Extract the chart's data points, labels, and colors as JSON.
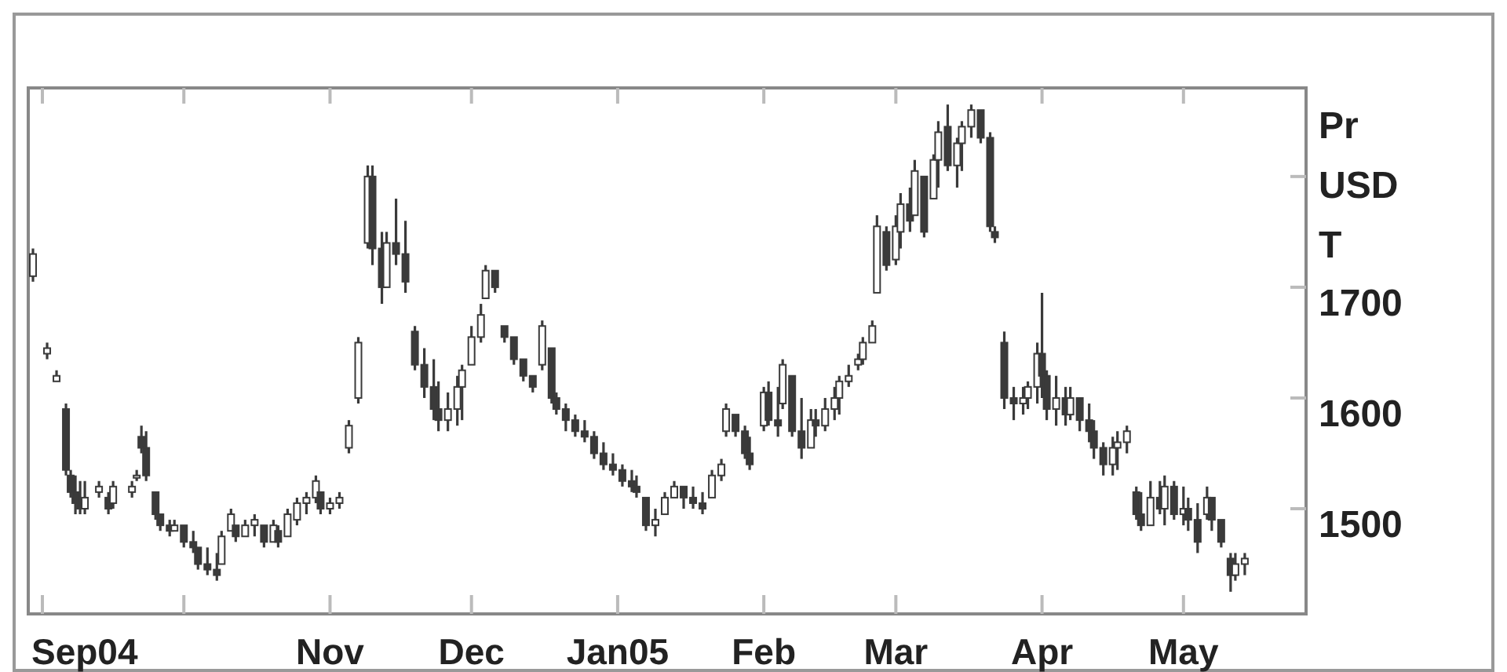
{
  "chart_data": {
    "type": "candlestick",
    "ylabel": "Pr USD T",
    "xlim": [
      "2004-08-29",
      "2005-05-27"
    ],
    "ylim": [
      1405,
      1880
    ],
    "yticks": [
      1500,
      1600,
      1700,
      {
        "value": 1800,
        "label": null
      }
    ],
    "xticks": [
      {
        "value": "2004-09-01",
        "label": "Sep04"
      },
      {
        "value": "2004-10-01",
        "label": null
      },
      {
        "value": "2004-11-01",
        "label": "Nov"
      },
      {
        "value": "2004-12-01",
        "label": "Dec"
      },
      {
        "value": "2005-01-01",
        "label": "Jan05"
      },
      {
        "value": "2005-02-01",
        "label": "Feb"
      },
      {
        "value": "2005-03-01",
        "label": "Mar"
      },
      {
        "value": "2005-04-01",
        "label": "Apr"
      },
      {
        "value": "2005-05-01",
        "label": "May"
      }
    ],
    "color": "#3a3a3a",
    "x": [
      "2004-08-30",
      "2004-09-02",
      "2004-09-04",
      "2004-09-06",
      "2004-09-07",
      "2004-09-08",
      "2004-09-09",
      "2004-09-10",
      "2004-09-13",
      "2004-09-15",
      "2004-09-16",
      "2004-09-20",
      "2004-09-21",
      "2004-09-22",
      "2004-09-23",
      "2004-09-25",
      "2004-09-26",
      "2004-09-28",
      "2004-09-29",
      "2004-10-01",
      "2004-10-03",
      "2004-10-04",
      "2004-10-06",
      "2004-10-08",
      "2004-10-09",
      "2004-10-11",
      "2004-10-12",
      "2004-10-14",
      "2004-10-16",
      "2004-10-18",
      "2004-10-20",
      "2004-10-21",
      "2004-10-23",
      "2004-10-25",
      "2004-10-27",
      "2004-10-29",
      "2004-10-30",
      "2004-11-01",
      "2004-11-03",
      "2004-11-05",
      "2004-11-07",
      "2004-11-09",
      "2004-11-10",
      "2004-11-12",
      "2004-11-13",
      "2004-11-15",
      "2004-11-17",
      "2004-11-19",
      "2004-11-21",
      "2004-11-23",
      "2004-11-24",
      "2004-11-26",
      "2004-11-28",
      "2004-11-29",
      "2004-12-01",
      "2004-12-03",
      "2004-12-04",
      "2004-12-06",
      "2004-12-08",
      "2004-12-10",
      "2004-12-12",
      "2004-12-14",
      "2004-12-16",
      "2004-12-18",
      "2004-12-19",
      "2004-12-21",
      "2004-12-23",
      "2004-12-25",
      "2004-12-27",
      "2004-12-29",
      "2004-12-31",
      "2005-01-02",
      "2005-01-04",
      "2005-01-05",
      "2005-01-07",
      "2005-01-09",
      "2005-01-11",
      "2005-01-13",
      "2005-01-15",
      "2005-01-17",
      "2005-01-19",
      "2005-01-21",
      "2005-01-23",
      "2005-01-24",
      "2005-01-26",
      "2005-01-28",
      "2005-01-29",
      "2005-02-01",
      "2005-02-02",
      "2005-02-04",
      "2005-02-05",
      "2005-02-07",
      "2005-02-09",
      "2005-02-11",
      "2005-02-12",
      "2005-02-14",
      "2005-02-16",
      "2005-02-17",
      "2005-02-19",
      "2005-02-21",
      "2005-02-22",
      "2005-02-24",
      "2005-02-25",
      "2005-02-27",
      "2005-03-01",
      "2005-03-02",
      "2005-03-04",
      "2005-03-05",
      "2005-03-07",
      "2005-03-09",
      "2005-03-10",
      "2005-03-12",
      "2005-03-14",
      "2005-03-15",
      "2005-03-17",
      "2005-03-19",
      "2005-03-21",
      "2005-03-22",
      "2005-03-24",
      "2005-03-26",
      "2005-03-28",
      "2005-03-29",
      "2005-03-31",
      "2005-04-01",
      "2005-04-02",
      "2005-04-04",
      "2005-04-06",
      "2005-04-07",
      "2005-04-09",
      "2005-04-11",
      "2005-04-12",
      "2005-04-14",
      "2005-04-16",
      "2005-04-17",
      "2005-04-19",
      "2005-04-21",
      "2005-04-22",
      "2005-04-24",
      "2005-04-26",
      "2005-04-27",
      "2005-04-29",
      "2005-05-01",
      "2005-05-02",
      "2005-05-04",
      "2005-05-06",
      "2005-05-07",
      "2005-05-09",
      "2005-05-11",
      "2005-05-12",
      "2005-05-14"
    ],
    "ohlc": [
      [
        1710,
        1735,
        1705,
        1730
      ],
      [
        1640,
        1650,
        1635,
        1645
      ],
      [
        1615,
        1625,
        1615,
        1620
      ],
      [
        1590,
        1595,
        1530,
        1535
      ],
      [
        1530,
        1535,
        1510,
        1515
      ],
      [
        1515,
        1530,
        1495,
        1505
      ],
      [
        1505,
        1525,
        1495,
        1500
      ],
      [
        1500,
        1525,
        1495,
        1510
      ],
      [
        1515,
        1525,
        1510,
        1520
      ],
      [
        1510,
        1515,
        1495,
        1500
      ],
      [
        1505,
        1525,
        1500,
        1520
      ],
      [
        1515,
        1525,
        1510,
        1520
      ],
      [
        1530,
        1535,
        1525,
        1530
      ],
      [
        1565,
        1575,
        1550,
        1555
      ],
      [
        1555,
        1570,
        1525,
        1530
      ],
      [
        1515,
        1515,
        1490,
        1495
      ],
      [
        1495,
        1495,
        1480,
        1485
      ],
      [
        1485,
        1490,
        1475,
        1480
      ],
      [
        1480,
        1490,
        1480,
        1485
      ],
      [
        1485,
        1485,
        1465,
        1470
      ],
      [
        1470,
        1480,
        1460,
        1465
      ],
      [
        1465,
        1465,
        1445,
        1450
      ],
      [
        1450,
        1465,
        1440,
        1445
      ],
      [
        1445,
        1460,
        1435,
        1440
      ],
      [
        1450,
        1480,
        1450,
        1475
      ],
      [
        1480,
        1500,
        1480,
        1495
      ],
      [
        1485,
        1485,
        1470,
        1475
      ],
      [
        1475,
        1490,
        1475,
        1485
      ],
      [
        1485,
        1495,
        1475,
        1490
      ],
      [
        1485,
        1485,
        1465,
        1470
      ],
      [
        1470,
        1490,
        1470,
        1485
      ],
      [
        1480,
        1485,
        1465,
        1470
      ],
      [
        1475,
        1500,
        1475,
        1495
      ],
      [
        1490,
        1510,
        1485,
        1505
      ],
      [
        1505,
        1515,
        1495,
        1510
      ],
      [
        1510,
        1530,
        1505,
        1525
      ],
      [
        1515,
        1515,
        1495,
        1500
      ],
      [
        1500,
        1510,
        1495,
        1505
      ],
      [
        1505,
        1515,
        1500,
        1510
      ],
      [
        1555,
        1580,
        1550,
        1575
      ],
      [
        1600,
        1655,
        1595,
        1650
      ],
      [
        1740,
        1810,
        1735,
        1800
      ],
      [
        1800,
        1810,
        1720,
        1735
      ],
      [
        1735,
        1750,
        1685,
        1700
      ],
      [
        1700,
        1750,
        1700,
        1740
      ],
      [
        1740,
        1780,
        1720,
        1730
      ],
      [
        1730,
        1760,
        1695,
        1705
      ],
      [
        1660,
        1665,
        1625,
        1630
      ],
      [
        1630,
        1645,
        1600,
        1610
      ],
      [
        1610,
        1635,
        1580,
        1590
      ],
      [
        1590,
        1615,
        1570,
        1580
      ],
      [
        1580,
        1605,
        1570,
        1590
      ],
      [
        1590,
        1620,
        1575,
        1610
      ],
      [
        1610,
        1630,
        1580,
        1625
      ],
      [
        1630,
        1665,
        1630,
        1655
      ],
      [
        1655,
        1685,
        1650,
        1675
      ],
      [
        1690,
        1720,
        1690,
        1715
      ],
      [
        1715,
        1715,
        1695,
        1700
      ],
      [
        1665,
        1665,
        1650,
        1655
      ],
      [
        1655,
        1655,
        1630,
        1635
      ],
      [
        1635,
        1635,
        1615,
        1620
      ],
      [
        1620,
        1620,
        1605,
        1610
      ],
      [
        1630,
        1670,
        1625,
        1665
      ],
      [
        1645,
        1645,
        1595,
        1600
      ],
      [
        1600,
        1605,
        1585,
        1590
      ],
      [
        1590,
        1595,
        1570,
        1580
      ],
      [
        1580,
        1585,
        1565,
        1570
      ],
      [
        1570,
        1580,
        1560,
        1565
      ],
      [
        1565,
        1570,
        1545,
        1550
      ],
      [
        1550,
        1560,
        1535,
        1540
      ],
      [
        1540,
        1550,
        1530,
        1535
      ],
      [
        1535,
        1540,
        1520,
        1525
      ],
      [
        1525,
        1535,
        1515,
        1520
      ],
      [
        1520,
        1530,
        1510,
        1515
      ],
      [
        1510,
        1510,
        1480,
        1485
      ],
      [
        1485,
        1500,
        1475,
        1490
      ],
      [
        1495,
        1515,
        1495,
        1510
      ],
      [
        1510,
        1525,
        1510,
        1520
      ],
      [
        1520,
        1520,
        1500,
        1510
      ],
      [
        1510,
        1520,
        1500,
        1505
      ],
      [
        1505,
        1515,
        1495,
        1500
      ],
      [
        1510,
        1535,
        1510,
        1530
      ],
      [
        1530,
        1545,
        1525,
        1540
      ],
      [
        1570,
        1595,
        1565,
        1590
      ],
      [
        1585,
        1585,
        1565,
        1570
      ],
      [
        1570,
        1575,
        1545,
        1550
      ],
      [
        1550,
        1565,
        1535,
        1540
      ],
      [
        1575,
        1610,
        1570,
        1605
      ],
      [
        1605,
        1615,
        1575,
        1580
      ],
      [
        1580,
        1610,
        1565,
        1575
      ],
      [
        1595,
        1635,
        1590,
        1630
      ],
      [
        1620,
        1620,
        1565,
        1570
      ],
      [
        1570,
        1600,
        1545,
        1555
      ],
      [
        1555,
        1590,
        1555,
        1580
      ],
      [
        1580,
        1590,
        1565,
        1575
      ],
      [
        1575,
        1600,
        1570,
        1590
      ],
      [
        1590,
        1610,
        1580,
        1600
      ],
      [
        1600,
        1620,
        1585,
        1615
      ],
      [
        1615,
        1630,
        1610,
        1620
      ],
      [
        1630,
        1640,
        1625,
        1635
      ],
      [
        1635,
        1655,
        1630,
        1650
      ],
      [
        1650,
        1670,
        1650,
        1665
      ],
      [
        1695,
        1765,
        1695,
        1755
      ],
      [
        1750,
        1755,
        1715,
        1720
      ],
      [
        1725,
        1765,
        1720,
        1755
      ],
      [
        1750,
        1785,
        1735,
        1775
      ],
      [
        1775,
        1790,
        1750,
        1760
      ],
      [
        1765,
        1815,
        1765,
        1805
      ],
      [
        1800,
        1800,
        1745,
        1750
      ],
      [
        1780,
        1820,
        1780,
        1815
      ],
      [
        1815,
        1850,
        1790,
        1840
      ],
      [
        1845,
        1865,
        1805,
        1810
      ],
      [
        1810,
        1835,
        1790,
        1830
      ],
      [
        1830,
        1850,
        1805,
        1845
      ],
      [
        1845,
        1865,
        1835,
        1860
      ],
      [
        1860,
        1860,
        1830,
        1835
      ],
      [
        1835,
        1840,
        1750,
        1755
      ],
      [
        1750,
        1755,
        1740,
        1745
      ],
      [
        1650,
        1660,
        1590,
        1600
      ],
      [
        1600,
        1610,
        1580,
        1595
      ],
      [
        1595,
        1610,
        1585,
        1600
      ],
      [
        1600,
        1615,
        1590,
        1610
      ],
      [
        1610,
        1650,
        1595,
        1640
      ],
      [
        1640,
        1695,
        1600,
        1620
      ],
      [
        1620,
        1625,
        1580,
        1590
      ],
      [
        1590,
        1620,
        1575,
        1600
      ],
      [
        1600,
        1610,
        1575,
        1585
      ],
      [
        1585,
        1610,
        1580,
        1600
      ],
      [
        1600,
        1600,
        1570,
        1580
      ],
      [
        1580,
        1595,
        1560,
        1570
      ],
      [
        1570,
        1580,
        1545,
        1555
      ],
      [
        1555,
        1560,
        1530,
        1540
      ],
      [
        1540,
        1565,
        1530,
        1555
      ],
      [
        1555,
        1570,
        1535,
        1560
      ],
      [
        1560,
        1575,
        1550,
        1570
      ],
      [
        1515,
        1520,
        1490,
        1495
      ],
      [
        1495,
        1515,
        1480,
        1485
      ],
      [
        1485,
        1525,
        1485,
        1510
      ],
      [
        1510,
        1525,
        1495,
        1500
      ],
      [
        1500,
        1530,
        1485,
        1520
      ],
      [
        1520,
        1525,
        1490,
        1495
      ],
      [
        1495,
        1520,
        1485,
        1500
      ],
      [
        1500,
        1510,
        1480,
        1490
      ],
      [
        1490,
        1505,
        1460,
        1470
      ],
      [
        1495,
        1520,
        1490,
        1510
      ],
      [
        1510,
        1510,
        1480,
        1490
      ],
      [
        1490,
        1490,
        1465,
        1470
      ],
      [
        1455,
        1460,
        1425,
        1440
      ],
      [
        1440,
        1460,
        1435,
        1450
      ],
      [
        1450,
        1460,
        1440,
        1455
      ]
    ]
  }
}
